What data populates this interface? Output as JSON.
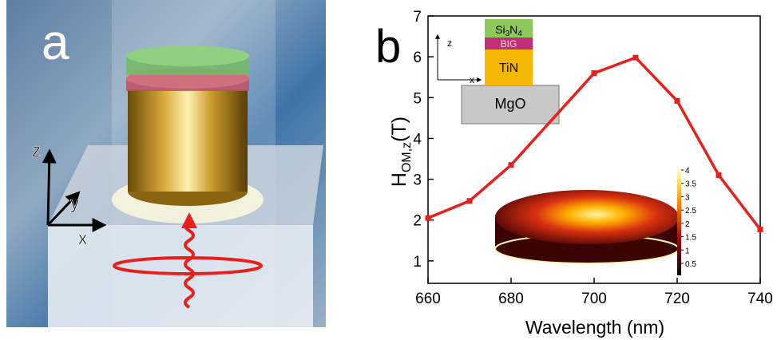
{
  "panel_a": {
    "label": "a",
    "axes": {
      "x": "x",
      "y": "y",
      "z": "z"
    }
  },
  "chart_data": {
    "type": "line",
    "panel_label": "b",
    "x_label": "Wavelength (nm)",
    "y_label": {
      "symbol": "H",
      "subscript": "OM,z",
      "unit": "(T)"
    },
    "x": [
      660,
      670,
      680,
      700,
      710,
      720,
      730,
      740
    ],
    "series": [
      {
        "color": "#e8201c",
        "values": [
          2.05,
          2.47,
          3.35,
          5.6,
          5.98,
          4.92,
          3.1,
          1.77
        ]
      }
    ],
    "xlim": [
      660,
      740
    ],
    "xticks": [
      660,
      680,
      700,
      720,
      740
    ],
    "ylim": [
      0.45,
      7
    ],
    "yticks": [
      1,
      2,
      3,
      4,
      5,
      6,
      7
    ],
    "inset_layers": {
      "formula": [
        "Si",
        "3",
        "N",
        "4"
      ],
      "layers": [
        "BIG",
        "TiN",
        "MgO"
      ],
      "axes": {
        "z": "z",
        "x": "x"
      }
    },
    "colorbar": {
      "lim": [
        0.05,
        4.15
      ],
      "ticks": [
        0.5,
        1,
        1.5,
        2,
        2.5,
        3,
        3.5,
        4
      ]
    }
  }
}
